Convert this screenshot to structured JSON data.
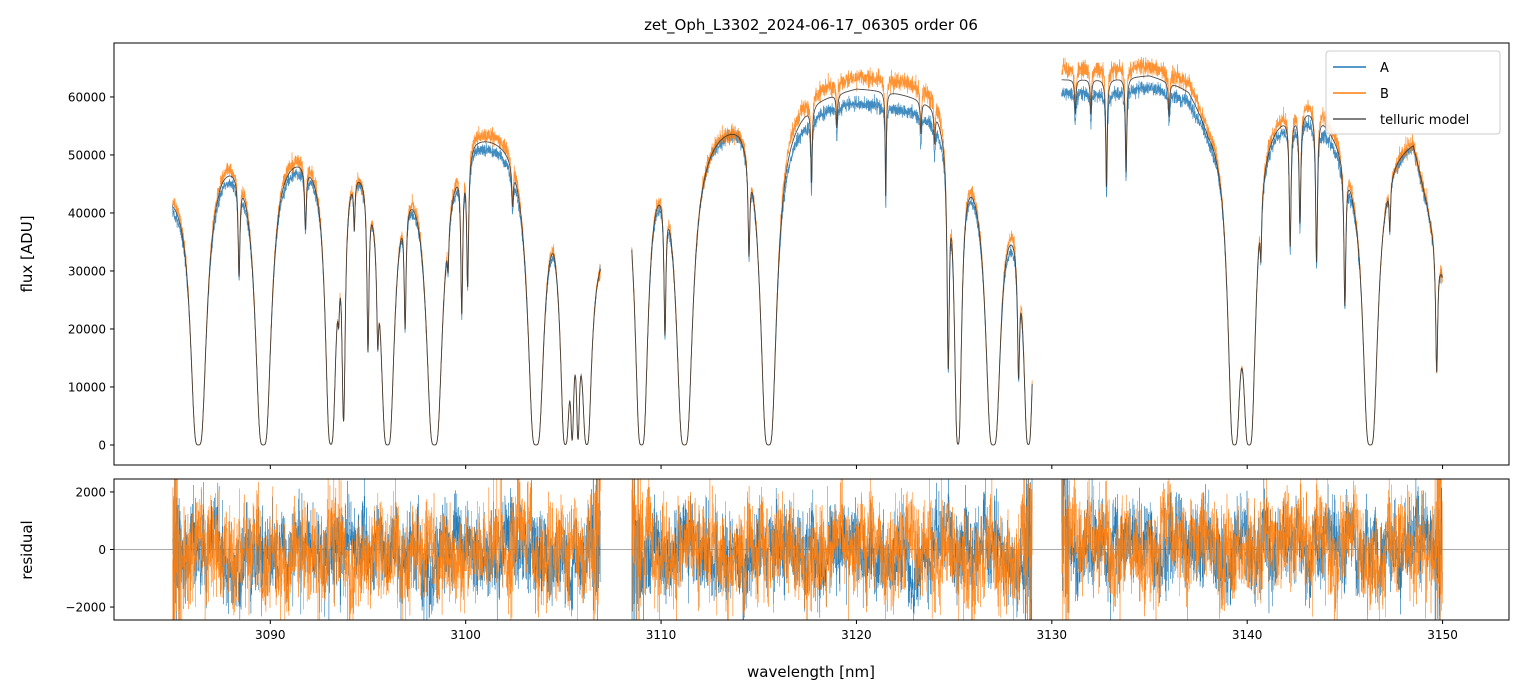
{
  "chart_data": [
    {
      "type": "line",
      "title": "zet_Oph_L3302_2024-06-17_06305  order 06",
      "xlabel": "",
      "ylabel": "flux [ADU]",
      "xlim": [
        3082.0,
        3153.4
      ],
      "ylim": [
        -3450,
        69300
      ],
      "yticks": [
        0,
        10000,
        20000,
        30000,
        40000,
        50000,
        60000
      ],
      "xticks": [
        3090,
        3100,
        3110,
        3120,
        3130,
        3140,
        3150
      ],
      "grid": false,
      "legend": {
        "placement": "top-right",
        "entries": [
          "A",
          "B",
          "telluric model"
        ]
      },
      "colors": {
        "A": "#1f77b4",
        "B": "#ff7f0e",
        "model": "#333333"
      },
      "segments": [
        {
          "range": [
            3085.0,
            3106.9
          ],
          "continuum": [
            [
              3085.0,
              45000,
              47000
            ],
            [
              3087.5,
              52000,
              54500
            ],
            [
              3090.5,
              53000,
              55500
            ],
            [
              3092,
              52000,
              54000
            ],
            [
              3094.5,
              53000,
              53500
            ],
            [
              3097.5,
              51000,
              53000
            ],
            [
              3099,
              52000,
              54000
            ],
            [
              3100.5,
              55000,
              57500
            ],
            [
              3102.5,
              54000,
              57000
            ],
            [
              3104.5,
              49000,
              51000
            ],
            [
              3105.5,
              34000,
              34000
            ],
            [
              3106.9,
              36000,
              36000
            ]
          ],
          "lines": [
            [
              3086.32,
              8,
              0.15
            ],
            [
              3088.4,
              0.45,
              0.05
            ],
            [
              3089.64,
              8,
              0.15
            ],
            [
              3091.8,
              0.25,
              0.05
            ],
            [
              3093.1,
              6,
              0.12
            ],
            [
              3093.5,
              0.3,
              0.05
            ],
            [
              3093.75,
              2.3,
              0.06
            ],
            [
              3094.3,
              0.2,
              0.04
            ],
            [
              3095.0,
              1.0,
              0.05
            ],
            [
              3095.5,
              0.6,
              0.05
            ],
            [
              3096.0,
              8,
              0.13
            ],
            [
              3096.9,
              0.7,
              0.05
            ],
            [
              3098.4,
              8,
              0.15
            ],
            [
              3099.1,
              0.2,
              0.04
            ],
            [
              3099.8,
              0.75,
              0.05
            ],
            [
              3100.1,
              0.6,
              0.05
            ],
            [
              3102.4,
              0.15,
              0.05
            ],
            [
              3103.6,
              8,
              0.15
            ],
            [
              3105.1,
              6,
              0.1
            ],
            [
              3105.45,
              3,
              0.05
            ],
            [
              3105.75,
              3,
              0.05
            ],
            [
              3106.2,
              6,
              0.1
            ]
          ]
        },
        {
          "range": [
            3108.5,
            3129.0
          ],
          "continuum": [
            [
              3108.5,
              53000,
              54000
            ],
            [
              3110,
              53000,
              55500
            ],
            [
              3112,
              55000,
              56000
            ],
            [
              3114,
              59000,
              59500
            ],
            [
              3116,
              56000,
              60000
            ],
            [
              3118,
              59000,
              63000
            ],
            [
              3120,
              60000,
              64500
            ],
            [
              3122,
              59000,
              64000
            ],
            [
              3124,
              58000,
              63000
            ],
            [
              3125.5,
              53000,
              55000
            ],
            [
              3127.5,
              47000,
              50000
            ],
            [
              3129,
              36000,
              40000
            ]
          ],
          "lines": [
            [
              3109.0,
              8,
              0.12
            ],
            [
              3110.2,
              0.8,
              0.05
            ],
            [
              3111.2,
              8,
              0.15
            ],
            [
              3114.5,
              0.4,
              0.05
            ],
            [
              3115.5,
              8,
              0.15
            ],
            [
              3117.7,
              0.25,
              0.04
            ],
            [
              3119.0,
              0.1,
              0.04
            ],
            [
              3121.5,
              0.35,
              0.03
            ],
            [
              3123.3,
              0.1,
              0.04
            ],
            [
              3124.0,
              0.1,
              0.04
            ],
            [
              3124.7,
              1.3,
              0.05
            ],
            [
              3125.2,
              6,
              0.08
            ],
            [
              3127.0,
              8,
              0.14
            ],
            [
              3128.3,
              1.0,
              0.05
            ],
            [
              3128.8,
              6,
              0.1
            ]
          ]
        },
        {
          "range": [
            3130.5,
            3150.0
          ],
          "continuum": [
            [
              3130.5,
              61000,
              65000
            ],
            [
              3133,
              61000,
              65500
            ],
            [
              3135,
              62500,
              66000
            ],
            [
              3137,
              61000,
              64500
            ],
            [
              3138,
              57000,
              59000
            ],
            [
              3141,
              58000,
              60000
            ],
            [
              3143.5,
              58000,
              61500
            ],
            [
              3145.5,
              50000,
              52000
            ],
            [
              3147,
              52000,
              52500
            ],
            [
              3148.5,
              53000,
              54000
            ],
            [
              3150,
              30000,
              30000
            ]
          ],
          "lines": [
            [
              3131.2,
              0.1,
              0.04
            ],
            [
              3132.0,
              0.1,
              0.04
            ],
            [
              3132.8,
              0.35,
              0.04
            ],
            [
              3133.8,
              0.3,
              0.04
            ],
            [
              3136.0,
              0.1,
              0.04
            ],
            [
              3139.35,
              8,
              0.12
            ],
            [
              3140.1,
              8,
              0.12
            ],
            [
              3140.7,
              0.25,
              0.04
            ],
            [
              3142.2,
              0.5,
              0.05
            ],
            [
              3142.7,
              0.4,
              0.05
            ],
            [
              3143.55,
              0.6,
              0.05
            ],
            [
              3145.0,
              0.7,
              0.05
            ],
            [
              3146.3,
              8,
              0.14
            ],
            [
              3147.3,
              0.2,
              0.04
            ],
            [
              3149.7,
              1.0,
              0.05
            ]
          ]
        }
      ]
    },
    {
      "type": "line",
      "xlabel": "wavelength [nm]",
      "ylabel": "residual",
      "xlim": [
        3082.0,
        3153.4
      ],
      "ylim": [
        -2450,
        2450
      ],
      "yticks": [
        -2000,
        0,
        2000
      ],
      "ytick_labels": [
        "−2000",
        "0",
        "2000"
      ],
      "xticks": [
        3090,
        3100,
        3110,
        3120,
        3130,
        3140,
        3150
      ],
      "xtick_labels": [
        "3090",
        "3100",
        "3110",
        "3120",
        "3130",
        "3140",
        "3150"
      ],
      "residual_rms": {
        "A": 650,
        "B": 750
      },
      "reference_line": 0
    }
  ]
}
